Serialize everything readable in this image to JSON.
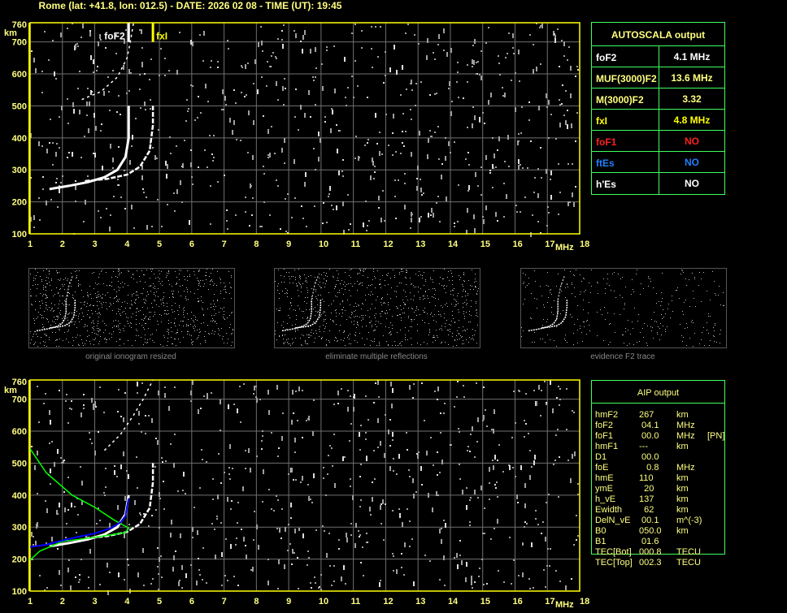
{
  "header": {
    "title": "Rome (lat: +41.8, lon: 012.5) - DATE: 2026 02 08 - TIME (UT): 19:45"
  },
  "colors": {
    "axis": "#ffff00",
    "grid": "#707070",
    "trace": "#ffffff",
    "noise": "#a0a0a0",
    "profile": "#00ff00",
    "fit": "#0000ff",
    "table_border": "#40ff60"
  },
  "chart_data": [
    {
      "type": "scatter",
      "name_note": "",
      "xlim": [
        1,
        18
      ],
      "ylim": [
        100,
        760
      ],
      "xticks": [
        "1",
        "2",
        "3",
        "4",
        "5",
        "6",
        "7",
        "8",
        "9",
        "10",
        "11",
        "12",
        "13",
        "14",
        "15",
        "16",
        "17",
        "18"
      ],
      "yticks": [
        "100",
        "200",
        "300",
        "400",
        "500",
        "600",
        "700",
        "760"
      ],
      "xunit": "MHz",
      "yunit": "km",
      "grid": true,
      "markers": [
        {
          "label": "foF2",
          "x": 4.05,
          "color": "#ffffff"
        },
        {
          "label": "fxI",
          "x": 4.8,
          "color": "#ffff00"
        }
      ],
      "o_trace": [
        [
          1.6,
          240
        ],
        [
          2.2,
          250
        ],
        [
          2.8,
          262
        ],
        [
          3.3,
          277
        ],
        [
          3.7,
          300
        ],
        [
          3.95,
          340
        ],
        [
          4.05,
          400
        ],
        [
          4.05,
          500
        ]
      ],
      "x_trace": [
        [
          2.7,
          265
        ],
        [
          3.4,
          272
        ],
        [
          4.0,
          285
        ],
        [
          4.4,
          310
        ],
        [
          4.7,
          360
        ],
        [
          4.8,
          440
        ],
        [
          4.8,
          500
        ]
      ],
      "multiple_trace": [
        [
          2.6,
          520
        ],
        [
          3.2,
          545
        ],
        [
          3.7,
          590
        ],
        [
          4.0,
          650
        ],
        [
          4.1,
          700
        ],
        [
          4.2,
          760
        ]
      ]
    },
    {
      "type": "line",
      "xlim": [
        1,
        18
      ],
      "ylim": [
        100,
        760
      ],
      "xticks": [
        "1",
        "2",
        "3",
        "4",
        "5",
        "6",
        "7",
        "8",
        "9",
        "10",
        "11",
        "12",
        "13",
        "14",
        "15",
        "16",
        "17",
        "18"
      ],
      "yticks": [
        "100",
        "200",
        "300",
        "400",
        "500",
        "600",
        "700",
        "760"
      ],
      "xunit": "MHz",
      "yunit": "km",
      "grid": true,
      "o_trace": [
        [
          1.6,
          240
        ],
        [
          2.2,
          250
        ],
        [
          2.8,
          262
        ],
        [
          3.3,
          277
        ],
        [
          3.7,
          300
        ],
        [
          3.95,
          340
        ],
        [
          4.05,
          400
        ]
      ],
      "x_trace": [
        [
          2.7,
          265
        ],
        [
          3.4,
          272
        ],
        [
          4.0,
          285
        ],
        [
          4.4,
          310
        ],
        [
          4.7,
          360
        ],
        [
          4.8,
          440
        ],
        [
          4.8,
          500
        ]
      ],
      "multiple_trace": [
        [
          3.3,
          540
        ],
        [
          3.8,
          590
        ],
        [
          4.2,
          650
        ],
        [
          4.5,
          700
        ],
        [
          4.8,
          760
        ]
      ],
      "profile": [
        [
          1,
          545
        ],
        [
          1.5,
          470
        ],
        [
          2.3,
          400
        ],
        [
          3,
          362
        ],
        [
          3.6,
          322
        ],
        [
          4.05,
          297
        ],
        [
          3.95,
          283
        ],
        [
          3,
          268
        ],
        [
          2,
          255
        ],
        [
          1.3,
          225
        ],
        [
          1,
          197
        ]
      ],
      "fit": [
        [
          1,
          238
        ],
        [
          1.5,
          245
        ],
        [
          2,
          258
        ],
        [
          2.5,
          270
        ],
        [
          3,
          280
        ],
        [
          3.5,
          297
        ],
        [
          3.8,
          315
        ],
        [
          3.95,
          335
        ],
        [
          4.0,
          365
        ],
        [
          4.05,
          390
        ]
      ]
    }
  ],
  "thumbnails": [
    {
      "caption": "original ionogram resized",
      "noise": 1.0
    },
    {
      "caption": "eliminate multiple reflections",
      "noise": 0.9
    },
    {
      "caption": "evidence F2 trace",
      "noise": 0.35
    }
  ],
  "autoscala": {
    "title": "AUTOSCALA output",
    "rows": [
      {
        "name": "foF2",
        "value": "4.1 MHz",
        "color": "#ffffff"
      },
      {
        "name": "MUF(3000)F2",
        "value": "13.6 MHz",
        "color": "#ffff80"
      },
      {
        "name": "M(3000)F2",
        "value": "3.32",
        "color": "#ffff80"
      },
      {
        "name": "fxI",
        "value": "4.8 MHz",
        "color": "#ffff00"
      },
      {
        "name": "foF1",
        "value": "NO",
        "color": "#ff2020"
      },
      {
        "name": "ftEs",
        "value": "NO",
        "color": "#2080ff"
      },
      {
        "name": "h'Es",
        "value": "NO",
        "color": "#ffffff"
      }
    ]
  },
  "aip": {
    "title": "AIP output",
    "rows": [
      {
        "name": "hmF2",
        "value": "267",
        "unit": "km",
        "extra": ""
      },
      {
        "name": "foF2",
        "value": " 04.1",
        "unit": "MHz",
        "extra": ""
      },
      {
        "name": "foF1",
        "value": " 00.0",
        "unit": "MHz",
        "extra": "[PN]"
      },
      {
        "name": "hmF1",
        "value": "---",
        "unit": "km",
        "extra": ""
      },
      {
        "name": "D1",
        "value": " 00.0",
        "unit": "",
        "extra": ""
      },
      {
        "name": "foE",
        "value": "   0.8",
        "unit": "MHz",
        "extra": ""
      },
      {
        "name": "hmE",
        "value": "110",
        "unit": "km",
        "extra": ""
      },
      {
        "name": "ymE",
        "value": "  20",
        "unit": "km",
        "extra": ""
      },
      {
        "name": "h_vE",
        "value": "137",
        "unit": "km",
        "extra": ""
      },
      {
        "name": "Ewidth",
        "value": "  62",
        "unit": "km",
        "extra": ""
      },
      {
        "name": "DelN_vE",
        "value": " 00.1",
        "unit": "m^(-3)",
        "extra": ""
      },
      {
        "name": "B0",
        "value": "050.0",
        "unit": "km",
        "extra": ""
      },
      {
        "name": "B1",
        "value": " 01.6",
        "unit": "",
        "extra": ""
      },
      {
        "name": "TEC[Bot]",
        "value": "000.8",
        "unit": "TECU",
        "extra": ""
      },
      {
        "name": "TEC[Top]",
        "value": "002.3",
        "unit": "TECU",
        "extra": ""
      }
    ]
  }
}
